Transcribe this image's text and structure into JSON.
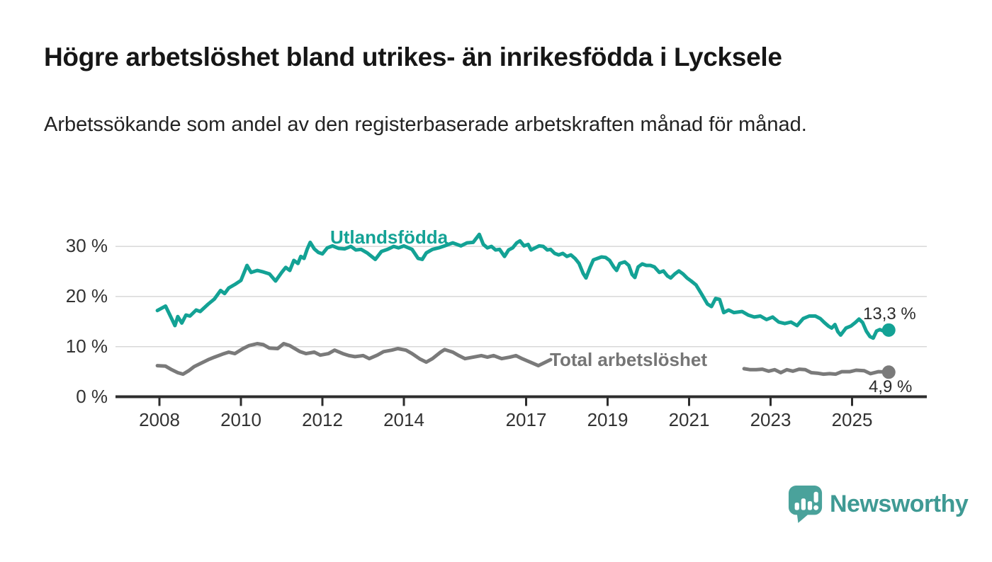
{
  "title": "Högre arbetslöshet bland utrikes- än inrikesfödda i Lycksele",
  "subtitle": "Arbetssökande som andel av den registerbaserade arbetskraften månad för månad.",
  "branding": {
    "logo_text": "Newsworthy",
    "logo_icon": "newsworthy-speech-bubble-bar-chart-icon",
    "logo_color": "#3f9a94",
    "logo_icon_color": "#4aa29b"
  },
  "chart_data": {
    "type": "line",
    "title": "Högre arbetslöshet bland utrikes- än inrikesfödda i Lycksele",
    "subtitle": "Arbetssökande som andel av den registerbaserade arbetskraften månad för månad.",
    "x_unit": "year (decimal, monthly observations)",
    "xlim": [
      2007.9,
      2026.2
    ],
    "ylim": [
      0,
      34
    ],
    "grid": "horizontal",
    "x_ticks": [
      {
        "v": 2008,
        "label": "2008"
      },
      {
        "v": 2010,
        "label": "2010"
      },
      {
        "v": 2012,
        "label": "2012"
      },
      {
        "v": 2014,
        "label": "2014"
      },
      {
        "v": 2017,
        "label": "2017"
      },
      {
        "v": 2019,
        "label": "2019"
      },
      {
        "v": 2021,
        "label": "2021"
      },
      {
        "v": 2023,
        "label": "2023"
      },
      {
        "v": 2025,
        "label": "2025"
      }
    ],
    "y_ticks": [
      {
        "v": 0,
        "label": "0 %"
      },
      {
        "v": 10,
        "label": "10 %"
      },
      {
        "v": 20,
        "label": "20 %"
      },
      {
        "v": 30,
        "label": "30 %"
      }
    ],
    "axis_color": "#2d2d2d",
    "gridline_color": "#d8d8d8",
    "series": [
      {
        "id": "utlandsfodda",
        "name": "Utlandsfödda",
        "color": "#13a295",
        "end_x": 2025.9,
        "end_value": 13.3,
        "end_label": "13,3 %",
        "segments": [
          [
            [
              2007.95,
              17.2
            ],
            [
              2008.15,
              18.1
            ],
            [
              2008.3,
              15.6
            ],
            [
              2008.38,
              14.2
            ],
            [
              2008.45,
              16.0
            ],
            [
              2008.55,
              14.7
            ],
            [
              2008.65,
              16.3
            ],
            [
              2008.75,
              16.1
            ],
            [
              2008.9,
              17.3
            ],
            [
              2009.0,
              17.0
            ],
            [
              2009.2,
              18.5
            ],
            [
              2009.35,
              19.5
            ],
            [
              2009.5,
              21.2
            ],
            [
              2009.6,
              20.6
            ],
            [
              2009.7,
              21.7
            ],
            [
              2009.85,
              22.4
            ],
            [
              2010.0,
              23.2
            ],
            [
              2010.15,
              26.2
            ],
            [
              2010.25,
              24.8
            ],
            [
              2010.4,
              25.2
            ],
            [
              2010.55,
              24.9
            ],
            [
              2010.7,
              24.5
            ],
            [
              2010.85,
              23.1
            ],
            [
              2011.0,
              24.8
            ],
            [
              2011.1,
              25.8
            ],
            [
              2011.2,
              25.2
            ],
            [
              2011.3,
              27.2
            ],
            [
              2011.4,
              26.6
            ],
            [
              2011.47,
              28.0
            ],
            [
              2011.55,
              27.6
            ],
            [
              2011.63,
              29.5
            ],
            [
              2011.7,
              30.8
            ],
            [
              2011.8,
              29.5
            ],
            [
              2011.9,
              28.8
            ],
            [
              2012.0,
              28.5
            ],
            [
              2012.12,
              29.7
            ],
            [
              2012.25,
              30.1
            ],
            [
              2012.4,
              29.6
            ],
            [
              2012.55,
              29.5
            ],
            [
              2012.7,
              30.0
            ],
            [
              2012.82,
              29.3
            ],
            [
              2012.95,
              29.4
            ],
            [
              2013.1,
              28.7
            ],
            [
              2013.3,
              27.4
            ],
            [
              2013.45,
              29.0
            ],
            [
              2013.6,
              29.4
            ],
            [
              2013.75,
              30.0
            ],
            [
              2013.87,
              29.7
            ],
            [
              2014.0,
              30.1
            ],
            [
              2014.2,
              29.4
            ],
            [
              2014.35,
              27.6
            ],
            [
              2014.45,
              27.4
            ],
            [
              2014.55,
              28.7
            ],
            [
              2014.7,
              29.4
            ],
            [
              2014.85,
              29.7
            ],
            [
              2015.0,
              30.1
            ],
            [
              2015.2,
              30.7
            ],
            [
              2015.4,
              30.1
            ],
            [
              2015.55,
              30.7
            ],
            [
              2015.7,
              30.8
            ],
            [
              2015.85,
              32.4
            ],
            [
              2015.95,
              30.4
            ],
            [
              2016.05,
              29.7
            ],
            [
              2016.15,
              30.0
            ],
            [
              2016.25,
              29.3
            ],
            [
              2016.35,
              29.4
            ],
            [
              2016.47,
              28.0
            ],
            [
              2016.57,
              29.3
            ],
            [
              2016.67,
              29.7
            ],
            [
              2016.77,
              30.7
            ],
            [
              2016.85,
              31.1
            ],
            [
              2016.95,
              30.1
            ],
            [
              2017.05,
              30.4
            ],
            [
              2017.12,
              29.3
            ],
            [
              2017.22,
              29.7
            ],
            [
              2017.32,
              30.1
            ],
            [
              2017.42,
              30.0
            ],
            [
              2017.52,
              29.3
            ],
            [
              2017.6,
              29.4
            ],
            [
              2017.7,
              28.6
            ],
            [
              2017.8,
              28.3
            ],
            [
              2017.9,
              28.6
            ],
            [
              2018.0,
              28.0
            ],
            [
              2018.1,
              28.3
            ],
            [
              2018.2,
              27.6
            ],
            [
              2018.3,
              26.6
            ],
            [
              2018.4,
              24.6
            ],
            [
              2018.47,
              23.7
            ],
            [
              2018.57,
              25.8
            ],
            [
              2018.65,
              27.3
            ],
            [
              2018.75,
              27.6
            ],
            [
              2018.85,
              27.9
            ],
            [
              2018.95,
              27.8
            ],
            [
              2019.05,
              27.2
            ],
            [
              2019.15,
              25.9
            ],
            [
              2019.22,
              25.2
            ],
            [
              2019.3,
              26.6
            ],
            [
              2019.42,
              26.9
            ],
            [
              2019.52,
              26.2
            ],
            [
              2019.6,
              24.4
            ],
            [
              2019.67,
              23.8
            ],
            [
              2019.75,
              25.9
            ],
            [
              2019.85,
              26.5
            ],
            [
              2019.95,
              26.2
            ],
            [
              2020.05,
              26.2
            ],
            [
              2020.15,
              25.9
            ],
            [
              2020.27,
              24.8
            ],
            [
              2020.37,
              25.1
            ],
            [
              2020.47,
              24.1
            ],
            [
              2020.55,
              23.7
            ],
            [
              2020.65,
              24.5
            ],
            [
              2020.75,
              25.1
            ],
            [
              2020.85,
              24.5
            ],
            [
              2020.95,
              23.7
            ],
            [
              2021.05,
              23.1
            ],
            [
              2021.17,
              22.3
            ],
            [
              2021.3,
              20.6
            ],
            [
              2021.45,
              18.5
            ],
            [
              2021.55,
              18.0
            ],
            [
              2021.65,
              19.6
            ],
            [
              2021.75,
              19.4
            ],
            [
              2021.85,
              16.8
            ],
            [
              2021.97,
              17.3
            ],
            [
              2022.1,
              16.8
            ],
            [
              2022.3,
              17.0
            ],
            [
              2022.45,
              16.3
            ],
            [
              2022.6,
              15.9
            ],
            [
              2022.75,
              16.1
            ],
            [
              2022.9,
              15.4
            ],
            [
              2023.05,
              15.9
            ],
            [
              2023.2,
              14.9
            ],
            [
              2023.35,
              14.6
            ],
            [
              2023.5,
              14.9
            ],
            [
              2023.65,
              14.2
            ],
            [
              2023.8,
              15.6
            ],
            [
              2023.95,
              16.1
            ],
            [
              2024.1,
              16.1
            ],
            [
              2024.22,
              15.6
            ],
            [
              2024.32,
              14.8
            ],
            [
              2024.42,
              14.1
            ],
            [
              2024.5,
              13.7
            ],
            [
              2024.58,
              14.4
            ],
            [
              2024.65,
              13.0
            ],
            [
              2024.72,
              12.3
            ],
            [
              2024.85,
              13.7
            ],
            [
              2024.97,
              14.1
            ],
            [
              2025.08,
              14.8
            ],
            [
              2025.17,
              15.5
            ],
            [
              2025.26,
              14.8
            ],
            [
              2025.35,
              13.1
            ],
            [
              2025.44,
              12.0
            ],
            [
              2025.52,
              11.7
            ],
            [
              2025.6,
              13.1
            ],
            [
              2025.68,
              13.4
            ],
            [
              2025.78,
              13.1
            ],
            [
              2025.9,
              13.3
            ]
          ]
        ]
      },
      {
        "id": "total-arbetsloshet",
        "name": "Total arbetslöshet",
        "color": "#7a7a7a",
        "label_color": "#757575",
        "end_x": 2025.9,
        "end_value": 4.9,
        "end_label": "4,9 %",
        "gap_note": "line hidden behind its series label between ca 2017.6 and 2022.3",
        "segments": [
          [
            [
              2007.95,
              6.2
            ],
            [
              2008.15,
              6.1
            ],
            [
              2008.3,
              5.4
            ],
            [
              2008.45,
              4.8
            ],
            [
              2008.58,
              4.5
            ],
            [
              2008.72,
              5.2
            ],
            [
              2008.85,
              6.0
            ],
            [
              2009.0,
              6.6
            ],
            [
              2009.2,
              7.4
            ],
            [
              2009.35,
              7.9
            ],
            [
              2009.55,
              8.5
            ],
            [
              2009.7,
              8.9
            ],
            [
              2009.85,
              8.6
            ],
            [
              2010.05,
              9.6
            ],
            [
              2010.2,
              10.2
            ],
            [
              2010.4,
              10.6
            ],
            [
              2010.55,
              10.4
            ],
            [
              2010.7,
              9.7
            ],
            [
              2010.9,
              9.6
            ],
            [
              2011.05,
              10.6
            ],
            [
              2011.2,
              10.2
            ],
            [
              2011.45,
              9.0
            ],
            [
              2011.6,
              8.6
            ],
            [
              2011.8,
              8.9
            ],
            [
              2011.95,
              8.3
            ],
            [
              2012.15,
              8.6
            ],
            [
              2012.3,
              9.3
            ],
            [
              2012.5,
              8.6
            ],
            [
              2012.65,
              8.2
            ],
            [
              2012.8,
              8.0
            ],
            [
              2013.0,
              8.2
            ],
            [
              2013.15,
              7.6
            ],
            [
              2013.35,
              8.3
            ],
            [
              2013.5,
              9.0
            ],
            [
              2013.7,
              9.3
            ],
            [
              2013.85,
              9.6
            ],
            [
              2014.05,
              9.3
            ],
            [
              2014.2,
              8.6
            ],
            [
              2014.4,
              7.5
            ],
            [
              2014.55,
              6.9
            ],
            [
              2014.7,
              7.6
            ],
            [
              2014.9,
              8.9
            ],
            [
              2015.0,
              9.4
            ],
            [
              2015.2,
              8.9
            ],
            [
              2015.35,
              8.2
            ],
            [
              2015.5,
              7.6
            ],
            [
              2015.7,
              7.9
            ],
            [
              2015.9,
              8.2
            ],
            [
              2016.05,
              7.9
            ],
            [
              2016.2,
              8.2
            ],
            [
              2016.4,
              7.6
            ],
            [
              2016.6,
              7.9
            ],
            [
              2016.75,
              8.2
            ],
            [
              2016.9,
              7.6
            ],
            [
              2017.1,
              6.9
            ],
            [
              2017.3,
              6.2
            ],
            [
              2017.45,
              6.8
            ],
            [
              2017.6,
              7.4
            ]
          ],
          [
            [
              2022.35,
              5.6
            ],
            [
              2022.5,
              5.4
            ],
            [
              2022.65,
              5.4
            ],
            [
              2022.8,
              5.5
            ],
            [
              2022.95,
              5.1
            ],
            [
              2023.1,
              5.4
            ],
            [
              2023.25,
              4.8
            ],
            [
              2023.4,
              5.4
            ],
            [
              2023.55,
              5.1
            ],
            [
              2023.7,
              5.5
            ],
            [
              2023.85,
              5.4
            ],
            [
              2024.0,
              4.8
            ],
            [
              2024.15,
              4.7
            ],
            [
              2024.3,
              4.5
            ],
            [
              2024.45,
              4.6
            ],
            [
              2024.6,
              4.5
            ],
            [
              2024.75,
              5.0
            ],
            [
              2024.95,
              5.0
            ],
            [
              2025.1,
              5.3
            ],
            [
              2025.3,
              5.2
            ],
            [
              2025.45,
              4.6
            ],
            [
              2025.65,
              5.0
            ],
            [
              2025.9,
              4.9
            ]
          ]
        ]
      }
    ]
  }
}
